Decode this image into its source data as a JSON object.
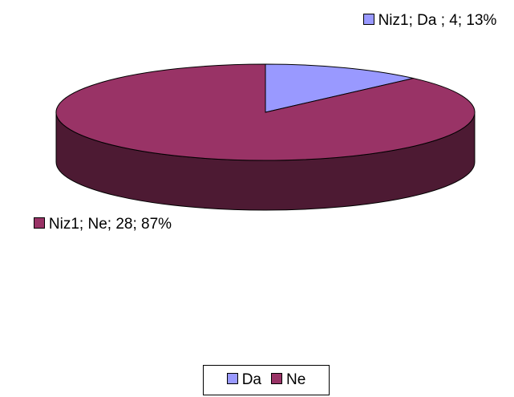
{
  "chart_data": {
    "type": "pie",
    "style": "3d",
    "categories": [
      "Da",
      "Ne"
    ],
    "values": [
      4,
      28
    ],
    "value_labels": [
      "Niz1; Da ; 4; 13%",
      "Niz1; Ne; 28; 87%"
    ],
    "colors": [
      "#9999ff",
      "#993366"
    ],
    "legend": "bottom"
  }
}
